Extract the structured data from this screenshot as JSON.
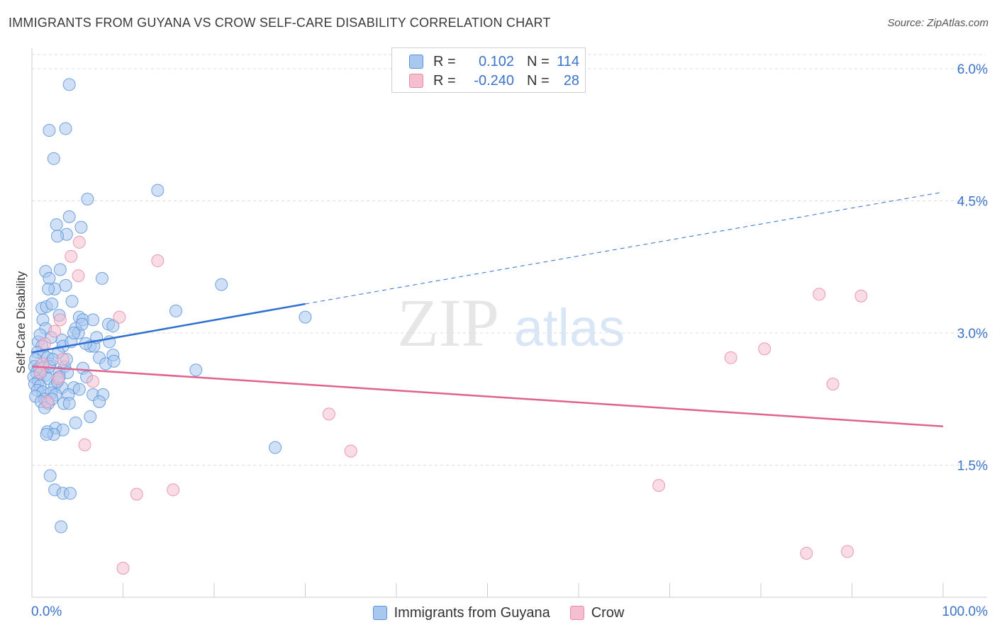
{
  "title": "IMMIGRANTS FROM GUYANA VS CROW SELF-CARE DISABILITY CORRELATION CHART",
  "source": "Source: ZipAtlas.com",
  "watermark": {
    "zip": "ZIP",
    "atlas": "atlas"
  },
  "colors": {
    "blue_fill": "#a9c8f0",
    "blue_stroke": "#5b93d8",
    "blue_line": "#2f6fd1",
    "pink_fill": "#f6bfd0",
    "pink_stroke": "#e88aa8",
    "pink_line": "#e0628f",
    "tick_label": "#3b73c9",
    "grid": "#dddddd"
  },
  "legend_top": [
    {
      "r_label": "R =",
      "r_value": "0.102",
      "n_label": "N =",
      "n_value": "114"
    },
    {
      "r_label": "R =",
      "r_value": "-0.240",
      "n_label": "N =",
      "n_value": "28"
    }
  ],
  "legend_bottom": [
    "Immigrants from Guyana",
    "Crow"
  ],
  "chart_data": {
    "type": "scatter",
    "ylabel": "Self-Care Disability",
    "xlim": [
      0,
      100
    ],
    "ylim": [
      0,
      6.0
    ],
    "x_tick_labels": [
      "0.0%",
      "100.0%"
    ],
    "y_ticks": [
      1.5,
      3.0,
      4.5,
      6.0
    ],
    "y_tick_labels": [
      "1.5%",
      "3.0%",
      "4.5%",
      "6.0%"
    ],
    "series": [
      {
        "name": "Immigrants from Guyana",
        "R": 0.102,
        "N": 114,
        "trend": {
          "x0": 0,
          "y0": 2.78,
          "x1": 30,
          "y1": 3.33,
          "x_dash_end": 100,
          "y_dash_end": 4.6
        },
        "points": [
          [
            4.1,
            5.82
          ],
          [
            1.9,
            5.3
          ],
          [
            3.7,
            5.32
          ],
          [
            2.4,
            4.98
          ],
          [
            6.1,
            4.52
          ],
          [
            13.8,
            4.62
          ],
          [
            4.1,
            4.32
          ],
          [
            2.7,
            4.23
          ],
          [
            5.4,
            4.2
          ],
          [
            3.8,
            4.12
          ],
          [
            2.8,
            4.1
          ],
          [
            1.5,
            3.7
          ],
          [
            2.5,
            3.5
          ],
          [
            3.1,
            3.72
          ],
          [
            1.9,
            3.62
          ],
          [
            7.7,
            3.62
          ],
          [
            20.8,
            3.55
          ],
          [
            3.7,
            3.54
          ],
          [
            4.4,
            3.36
          ],
          [
            1.8,
            3.5
          ],
          [
            1.1,
            3.28
          ],
          [
            1.6,
            3.3
          ],
          [
            2.2,
            3.33
          ],
          [
            3.0,
            3.2
          ],
          [
            1.2,
            3.15
          ],
          [
            5.2,
            3.18
          ],
          [
            5.6,
            3.15
          ],
          [
            6.7,
            3.15
          ],
          [
            15.8,
            3.25
          ],
          [
            30.0,
            3.18
          ],
          [
            8.4,
            3.1
          ],
          [
            8.9,
            3.08
          ],
          [
            4.8,
            3.05
          ],
          [
            5.1,
            3.0
          ],
          [
            1.5,
            3.05
          ],
          [
            3.3,
            2.92
          ],
          [
            2.1,
            2.95
          ],
          [
            0.7,
            2.9
          ],
          [
            1.1,
            2.85
          ],
          [
            3.4,
            2.85
          ],
          [
            6.4,
            2.85
          ],
          [
            6.8,
            2.85
          ],
          [
            8.5,
            2.9
          ],
          [
            8.9,
            2.75
          ],
          [
            7.4,
            2.72
          ],
          [
            8.1,
            2.65
          ],
          [
            0.6,
            2.78
          ],
          [
            1.3,
            2.75
          ],
          [
            1.7,
            2.72
          ],
          [
            0.4,
            2.7
          ],
          [
            0.3,
            2.62
          ],
          [
            0.8,
            2.6
          ],
          [
            1.2,
            2.6
          ],
          [
            2.0,
            2.65
          ],
          [
            3.6,
            2.62
          ],
          [
            5.6,
            2.6
          ],
          [
            0.5,
            2.55
          ],
          [
            1.0,
            2.55
          ],
          [
            1.5,
            2.52
          ],
          [
            3.0,
            2.55
          ],
          [
            3.9,
            2.55
          ],
          [
            18.0,
            2.58
          ],
          [
            0.2,
            2.5
          ],
          [
            0.7,
            2.45
          ],
          [
            1.8,
            2.48
          ],
          [
            0.3,
            2.42
          ],
          [
            0.9,
            2.4
          ],
          [
            2.5,
            2.4
          ],
          [
            0.6,
            2.35
          ],
          [
            3.3,
            2.38
          ],
          [
            4.6,
            2.38
          ],
          [
            5.2,
            2.36
          ],
          [
            1.2,
            2.33
          ],
          [
            2.1,
            2.32
          ],
          [
            2.6,
            2.3
          ],
          [
            4.0,
            2.3
          ],
          [
            0.4,
            2.28
          ],
          [
            1.4,
            2.25
          ],
          [
            6.7,
            2.3
          ],
          [
            7.8,
            2.3
          ],
          [
            1.0,
            2.22
          ],
          [
            7.4,
            2.22
          ],
          [
            1.8,
            2.2
          ],
          [
            3.5,
            2.2
          ],
          [
            1.4,
            2.15
          ],
          [
            6.4,
            2.05
          ],
          [
            4.8,
            1.98
          ],
          [
            2.6,
            1.92
          ],
          [
            3.4,
            1.9
          ],
          [
            1.7,
            1.88
          ],
          [
            2.4,
            1.85
          ],
          [
            1.6,
            1.85
          ],
          [
            26.7,
            1.7
          ],
          [
            2.0,
            1.38
          ],
          [
            2.5,
            1.22
          ],
          [
            3.4,
            1.18
          ],
          [
            4.2,
            1.18
          ],
          [
            3.2,
            0.8
          ],
          [
            9.0,
            2.68
          ],
          [
            5.9,
            2.88
          ],
          [
            4.3,
            2.9
          ],
          [
            2.9,
            2.78
          ],
          [
            1.9,
            2.62
          ],
          [
            6.0,
            2.5
          ],
          [
            2.2,
            2.25
          ],
          [
            2.8,
            2.45
          ],
          [
            3.8,
            2.7
          ],
          [
            0.9,
            2.98
          ],
          [
            7.1,
            2.95
          ],
          [
            5.5,
            3.1
          ],
          [
            4.6,
            3.0
          ],
          [
            2.3,
            2.7
          ],
          [
            3.0,
            2.5
          ],
          [
            4.1,
            2.2
          ]
        ]
      },
      {
        "name": "Crow",
        "R": -0.24,
        "N": 28,
        "trend": {
          "x0": 0,
          "y0": 2.62,
          "x1": 100,
          "y1": 1.94
        },
        "points": [
          [
            5.2,
            4.03
          ],
          [
            4.3,
            3.87
          ],
          [
            13.8,
            3.82
          ],
          [
            5.1,
            3.65
          ],
          [
            3.1,
            3.15
          ],
          [
            9.6,
            3.18
          ],
          [
            2.5,
            3.02
          ],
          [
            1.4,
            2.88
          ],
          [
            1.2,
            2.65
          ],
          [
            3.4,
            2.7
          ],
          [
            6.7,
            2.45
          ],
          [
            1.7,
            2.22
          ],
          [
            32.6,
            2.08
          ],
          [
            5.8,
            1.73
          ],
          [
            35.0,
            1.66
          ],
          [
            11.5,
            1.17
          ],
          [
            15.5,
            1.22
          ],
          [
            68.8,
            1.27
          ],
          [
            10.0,
            0.33
          ],
          [
            86.4,
            3.44
          ],
          [
            91.0,
            3.42
          ],
          [
            76.7,
            2.72
          ],
          [
            80.4,
            2.82
          ],
          [
            87.9,
            2.42
          ],
          [
            85.0,
            0.5
          ],
          [
            89.5,
            0.52
          ],
          [
            2.9,
            2.48
          ],
          [
            0.9,
            2.55
          ]
        ]
      }
    ]
  }
}
